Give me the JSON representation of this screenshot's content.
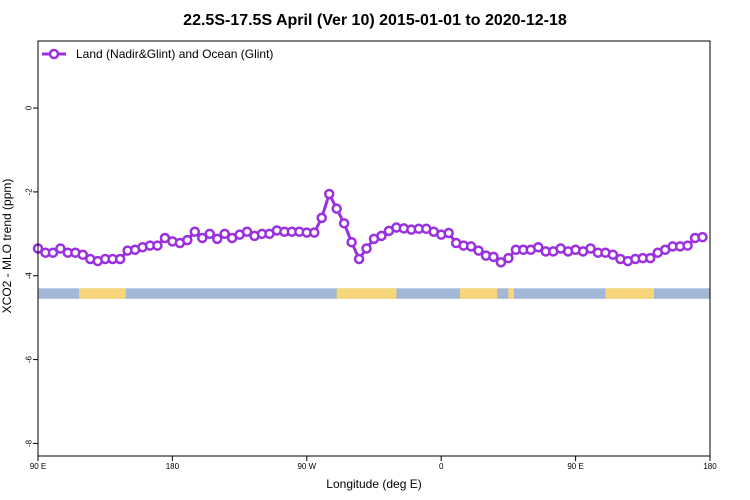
{
  "chart_data": {
    "type": "line",
    "title": "22.5S-17.5S April (Ver 10)   2015-01-01 to 2020-12-18",
    "xlabel": "Longitude (deg E)",
    "ylabel": "XCO2 - MLO trend (ppm)",
    "xlim": [
      90,
      450
    ],
    "ylim": [
      -8.3,
      1.6
    ],
    "x_ticks": [
      {
        "value": 90,
        "label": "90 E"
      },
      {
        "value": 162,
        "label": "180"
      },
      {
        "value": 234,
        "label": "90 W"
      },
      {
        "value": 306,
        "label": "0"
      },
      {
        "value": 378,
        "label": "90 E"
      },
      {
        "value": 450,
        "label": "180"
      }
    ],
    "y_ticks": [
      {
        "value": 0,
        "label": "0"
      },
      {
        "value": -2,
        "label": "-2"
      },
      {
        "value": -4,
        "label": "-4"
      },
      {
        "value": -6,
        "label": "-6"
      },
      {
        "value": -8,
        "label": "-8"
      }
    ],
    "legend": {
      "position": "top-left"
    },
    "series": [
      {
        "name": "Land (Nadir&Glint) and Ocean (Glint)",
        "color": "#9b30e0",
        "points": [
          [
            90,
            -3.35
          ],
          [
            94,
            -3.45
          ],
          [
            98,
            -3.45
          ],
          [
            102,
            -3.35
          ],
          [
            106,
            -3.45
          ],
          [
            110,
            -3.45
          ],
          [
            114,
            -3.5
          ],
          [
            118,
            -3.6
          ],
          [
            122,
            -3.65
          ],
          [
            126,
            -3.6
          ],
          [
            130,
            -3.6
          ],
          [
            134,
            -3.6
          ],
          [
            138,
            -3.4
          ],
          [
            142,
            -3.38
          ],
          [
            146,
            -3.32
          ],
          [
            150,
            -3.28
          ],
          [
            154,
            -3.28
          ],
          [
            158,
            -3.1
          ],
          [
            162,
            -3.18
          ],
          [
            166,
            -3.22
          ],
          [
            170,
            -3.15
          ],
          [
            174,
            -2.95
          ],
          [
            178,
            -3.1
          ],
          [
            182,
            -3.0
          ],
          [
            186,
            -3.12
          ],
          [
            190,
            -3.0
          ],
          [
            194,
            -3.1
          ],
          [
            198,
            -3.02
          ],
          [
            202,
            -2.95
          ],
          [
            206,
            -3.05
          ],
          [
            210,
            -3.0
          ],
          [
            214,
            -3.0
          ],
          [
            218,
            -2.92
          ],
          [
            222,
            -2.95
          ],
          [
            226,
            -2.95
          ],
          [
            230,
            -2.95
          ],
          [
            234,
            -2.97
          ],
          [
            238,
            -2.97
          ],
          [
            242,
            -2.62
          ],
          [
            246,
            -2.05
          ],
          [
            250,
            -2.4
          ],
          [
            254,
            -2.75
          ],
          [
            258,
            -3.2
          ],
          [
            262,
            -3.6
          ],
          [
            266,
            -3.35
          ],
          [
            270,
            -3.12
          ],
          [
            274,
            -3.05
          ],
          [
            278,
            -2.93
          ],
          [
            282,
            -2.85
          ],
          [
            286,
            -2.87
          ],
          [
            290,
            -2.9
          ],
          [
            294,
            -2.88
          ],
          [
            298,
            -2.88
          ],
          [
            302,
            -2.95
          ],
          [
            306,
            -3.02
          ],
          [
            310,
            -2.98
          ],
          [
            314,
            -3.22
          ],
          [
            318,
            -3.28
          ],
          [
            322,
            -3.3
          ],
          [
            326,
            -3.4
          ],
          [
            330,
            -3.52
          ],
          [
            334,
            -3.55
          ],
          [
            338,
            -3.68
          ],
          [
            342,
            -3.58
          ],
          [
            346,
            -3.38
          ],
          [
            350,
            -3.38
          ],
          [
            354,
            -3.38
          ],
          [
            358,
            -3.32
          ],
          [
            362,
            -3.42
          ],
          [
            366,
            -3.42
          ],
          [
            370,
            -3.35
          ],
          [
            374,
            -3.42
          ],
          [
            378,
            -3.38
          ],
          [
            382,
            -3.42
          ],
          [
            386,
            -3.35
          ],
          [
            390,
            -3.45
          ],
          [
            394,
            -3.45
          ],
          [
            398,
            -3.5
          ],
          [
            402,
            -3.6
          ],
          [
            406,
            -3.65
          ],
          [
            410,
            -3.6
          ],
          [
            414,
            -3.58
          ],
          [
            418,
            -3.58
          ],
          [
            422,
            -3.45
          ],
          [
            426,
            -3.38
          ],
          [
            430,
            -3.3
          ],
          [
            434,
            -3.3
          ],
          [
            438,
            -3.28
          ],
          [
            442,
            -3.1
          ],
          [
            446,
            -3.08
          ]
        ]
      }
    ],
    "surface_band": {
      "y_top": -4.3,
      "y_bottom": -4.55,
      "ocean_color": "#a3b7d6",
      "land_color": "#f7d67a",
      "land_ranges": [
        [
          112,
          137
        ],
        [
          250,
          282
        ],
        [
          316,
          336
        ],
        [
          342,
          345
        ],
        [
          394,
          420
        ]
      ]
    }
  }
}
